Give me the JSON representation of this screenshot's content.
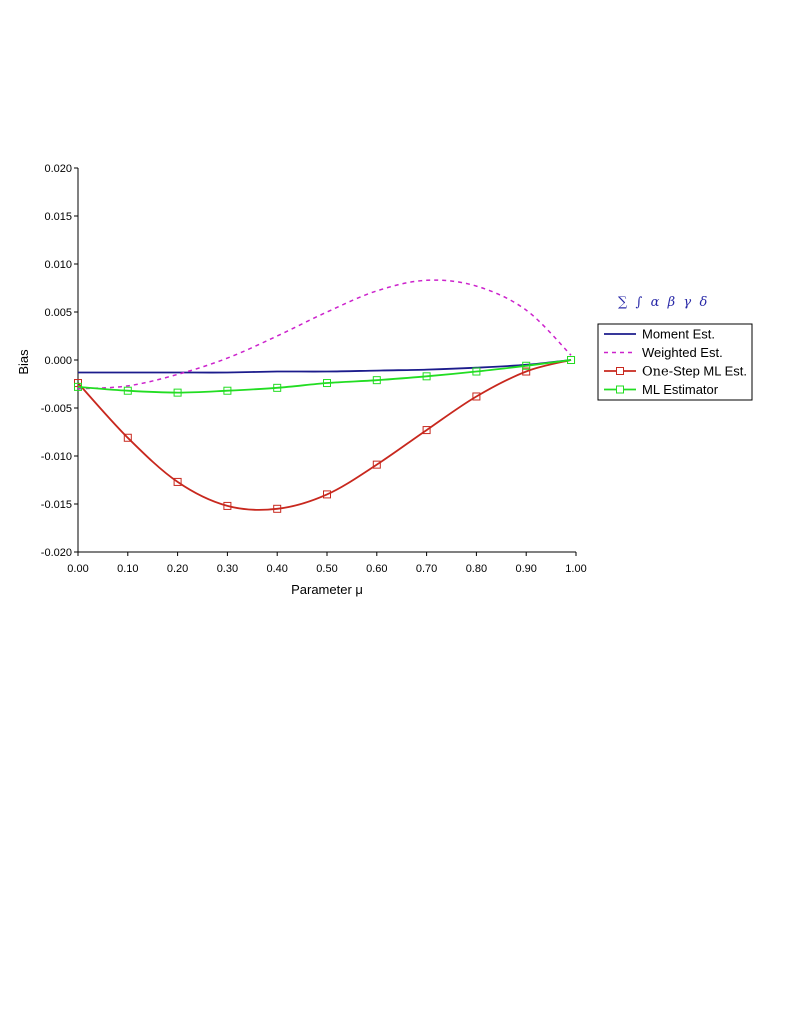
{
  "chart_data": {
    "type": "line",
    "xlabel": "Parameter μ",
    "ylabel": "Bias",
    "xlim": [
      0.0,
      1.0
    ],
    "ylim": [
      -0.02,
      0.02
    ],
    "x_ticks": [
      "0.00",
      "0.10",
      "0.20",
      "0.30",
      "0.40",
      "0.50",
      "0.60",
      "0.70",
      "0.80",
      "0.90",
      "1.00"
    ],
    "y_ticks": [
      "-0.020",
      "-0.015",
      "-0.010",
      "-0.005",
      "0.000",
      "0.005",
      "0.010",
      "0.015",
      "0.020"
    ],
    "grid": false,
    "legend_position": "right",
    "symbols_text": "∑  ∫  α  β  γ  δ",
    "series": [
      {
        "name": "Moment Est.",
        "color": "#1c1c8c",
        "style": "solid",
        "marker": "none",
        "x": [
          0.0,
          0.1,
          0.2,
          0.3,
          0.4,
          0.5,
          0.6,
          0.7,
          0.8,
          0.9,
          0.99
        ],
        "y": [
          -0.0013,
          -0.0013,
          -0.0013,
          -0.0013,
          -0.0012,
          -0.0012,
          -0.0011,
          -0.001,
          -0.0008,
          -0.0005,
          0.0
        ]
      },
      {
        "name": "Weighted Est.",
        "color": "#cc22cc",
        "style": "dashed",
        "marker": "none",
        "x": [
          0.0,
          0.1,
          0.2,
          0.3,
          0.4,
          0.5,
          0.6,
          0.7,
          0.8,
          0.9,
          0.99
        ],
        "y": [
          -0.003,
          -0.0027,
          -0.0015,
          0.0002,
          0.0025,
          0.005,
          0.0072,
          0.0083,
          0.0077,
          0.0052,
          0.0005
        ]
      },
      {
        "name": "One-Step ML Est.",
        "legend_prefix": "One",
        "legend_suffix": "-Step ML Est.",
        "color": "#c8281e",
        "style": "solid",
        "marker": "square",
        "x": [
          0.0,
          0.1,
          0.2,
          0.3,
          0.4,
          0.5,
          0.6,
          0.7,
          0.8,
          0.9,
          0.99
        ],
        "y": [
          -0.0024,
          -0.0081,
          -0.0127,
          -0.0152,
          -0.0155,
          -0.014,
          -0.0109,
          -0.0073,
          -0.0038,
          -0.0012,
          0.0
        ]
      },
      {
        "name": "ML Estimator",
        "color": "#22dd22",
        "style": "solid",
        "marker": "square",
        "x": [
          0.0,
          0.1,
          0.2,
          0.3,
          0.4,
          0.5,
          0.6,
          0.7,
          0.8,
          0.9,
          0.99
        ],
        "y": [
          -0.0028,
          -0.0032,
          -0.0034,
          -0.0032,
          -0.0029,
          -0.0024,
          -0.0021,
          -0.0017,
          -0.0012,
          -0.0006,
          0.0
        ]
      }
    ]
  }
}
